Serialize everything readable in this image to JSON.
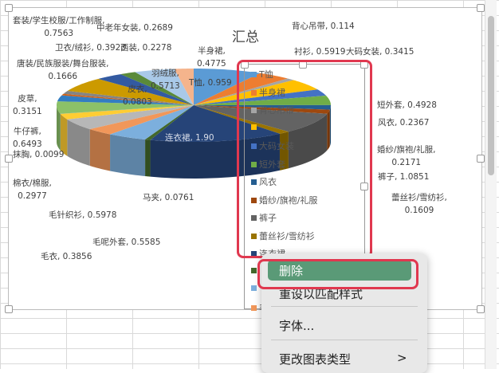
{
  "chart_data": {
    "type": "pie",
    "style": "3d",
    "title": "汇总",
    "legend_position": "right",
    "categories": [
      "T恤",
      "半身裙",
      "背心吊带",
      "衬衫",
      "大码女装",
      "短外套",
      "风衣",
      "婚纱/旗袍/礼服",
      "裤子",
      "蕾丝衫/雪纺衫",
      "连衣裙",
      "马夹",
      "毛呢外套",
      "毛衣",
      "毛针织衫",
      "棉衣/棉服",
      "抹胸",
      "牛仔裤",
      "皮草",
      "皮衣",
      "唐装/民族服装/舞台服装",
      "套装/学生校服/工作制服",
      "卫衣/绒衫",
      "西装",
      "羽绒服",
      "中老年女装"
    ],
    "values": [
      0.959,
      0.4775,
      0.114,
      0.5919,
      0.3415,
      0.4928,
      0.2367,
      0.2171,
      1.0851,
      0.1609,
      1.9,
      0.0761,
      0.5585,
      0.3856,
      0.5978,
      0.2977,
      0.0099,
      0.6493,
      0.3151,
      0.0803,
      0.1666,
      0.7563,
      0.3923,
      0.2278,
      0.5713,
      0.2689
    ],
    "data_labels": [
      "T恤, 0.959",
      "半身裙, 0.4775",
      "背心吊带, 0.114",
      "衬衫, 0.5919",
      "大码女装, 0.3415",
      "短外套, 0.4928",
      "风衣, 0.2367",
      "婚纱/旗袍/礼服, 0.2171",
      "裤子, 1.0851",
      "蕾丝衫/雪纺衫, 0.1609",
      "连衣裙, 1.90",
      "马夹, 0.0761",
      "毛呢外套, 0.5585",
      "毛衣, 0.3856",
      "毛针织衫, 0.5978",
      "棉衣/棉服, 0.2977",
      "抹胸, 0.0099",
      "牛仔裤, 0.6493",
      "皮草, 0.3151",
      "皮衣, 0.0803",
      "唐装/民族服装/舞台服装, 0.1666",
      "套装/学生校服/工作制服, 0.7563",
      "卫衣/绒衫, 0.3923",
      "西装, 0.2278",
      "羽绒服, 0.5713",
      "中老年女装, 0.2689"
    ],
    "colors": [
      "#5B9BD5",
      "#ED7D31",
      "#A5A5A5",
      "#FFC000",
      "#4472C4",
      "#70AD47",
      "#255E91",
      "#9E480E",
      "#636363",
      "#997300",
      "#264478",
      "#43682B",
      "#7CAFDD",
      "#F1975A",
      "#B7B7B7",
      "#FFCD33",
      "#698ED0",
      "#8CC168",
      "#327DC2",
      "#D26012",
      "#848484",
      "#CC9A00",
      "#335AA1",
      "#5A8A39",
      "#A9C9E8",
      "#F5B48C"
    ]
  },
  "legend_items": [
    "T恤",
    "半身裙",
    "背心吊带",
    "",
    "大码女装",
    "短外套",
    "风衣",
    "婚纱/旗袍/礼服",
    "裤子",
    "蕾丝衫/雪纺衫",
    "连衣裙",
    "",
    "",
    "毛"
  ],
  "context_menu": {
    "items": [
      "删除",
      "重设以匹配样式",
      "字体...",
      "更改图表类型"
    ],
    "submenu_arrow": ">"
  }
}
